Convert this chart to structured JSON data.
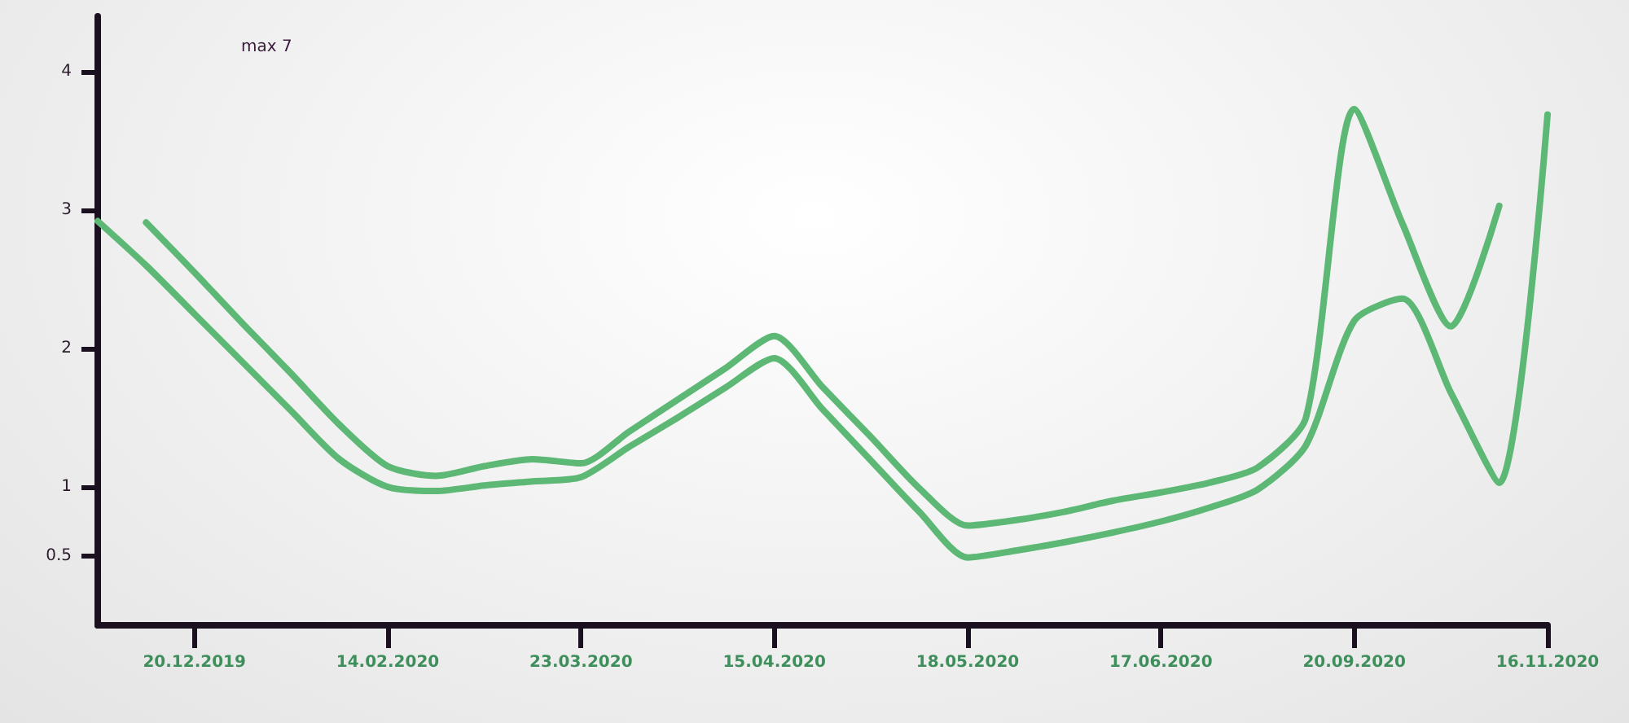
{
  "chart_data": {
    "type": "line",
    "categories": [
      null,
      null,
      "20.12.2019",
      null,
      null,
      null,
      "14.02.2020",
      null,
      null,
      null,
      "23.03.2020",
      null,
      null,
      null,
      "15.04.2020",
      null,
      null,
      null,
      "18.05.2020",
      null,
      null,
      null,
      "17.06.2020",
      null,
      null,
      null,
      "20.09.2020",
      null,
      null,
      null,
      "16.11.2020"
    ],
    "series": [
      {
        "color": "#5cb874",
        "values": [
          null,
          2.91,
          2.55,
          2.18,
          1.82,
          1.45,
          1.15,
          1.08,
          1.15,
          1.2,
          1.17,
          1.4,
          1.63,
          1.86,
          2.09,
          1.72,
          1.36,
          0.99,
          0.72,
          0.76,
          0.82,
          0.9,
          0.96,
          1.03,
          1.14,
          1.5,
          3.73,
          2.9,
          2.16,
          3.03,
          null
        ]
      },
      {
        "color": "#5cb874",
        "values": [
          2.92,
          2.6,
          2.25,
          1.9,
          1.55,
          1.2,
          1.0,
          0.97,
          1.01,
          1.04,
          1.07,
          1.29,
          1.5,
          1.72,
          1.93,
          1.56,
          1.19,
          0.82,
          0.49,
          0.54,
          0.6,
          0.67,
          0.75,
          0.85,
          0.98,
          1.3,
          2.2,
          2.36,
          1.68,
          1.03,
          3.69
        ]
      }
    ],
    "ylim": [
      0,
      4.4
    ],
    "yticks": [
      0.5,
      1,
      2,
      3,
      4
    ],
    "annotations": [
      "max 7"
    ],
    "grid": false,
    "marker": "none",
    "line_style": "solid"
  }
}
